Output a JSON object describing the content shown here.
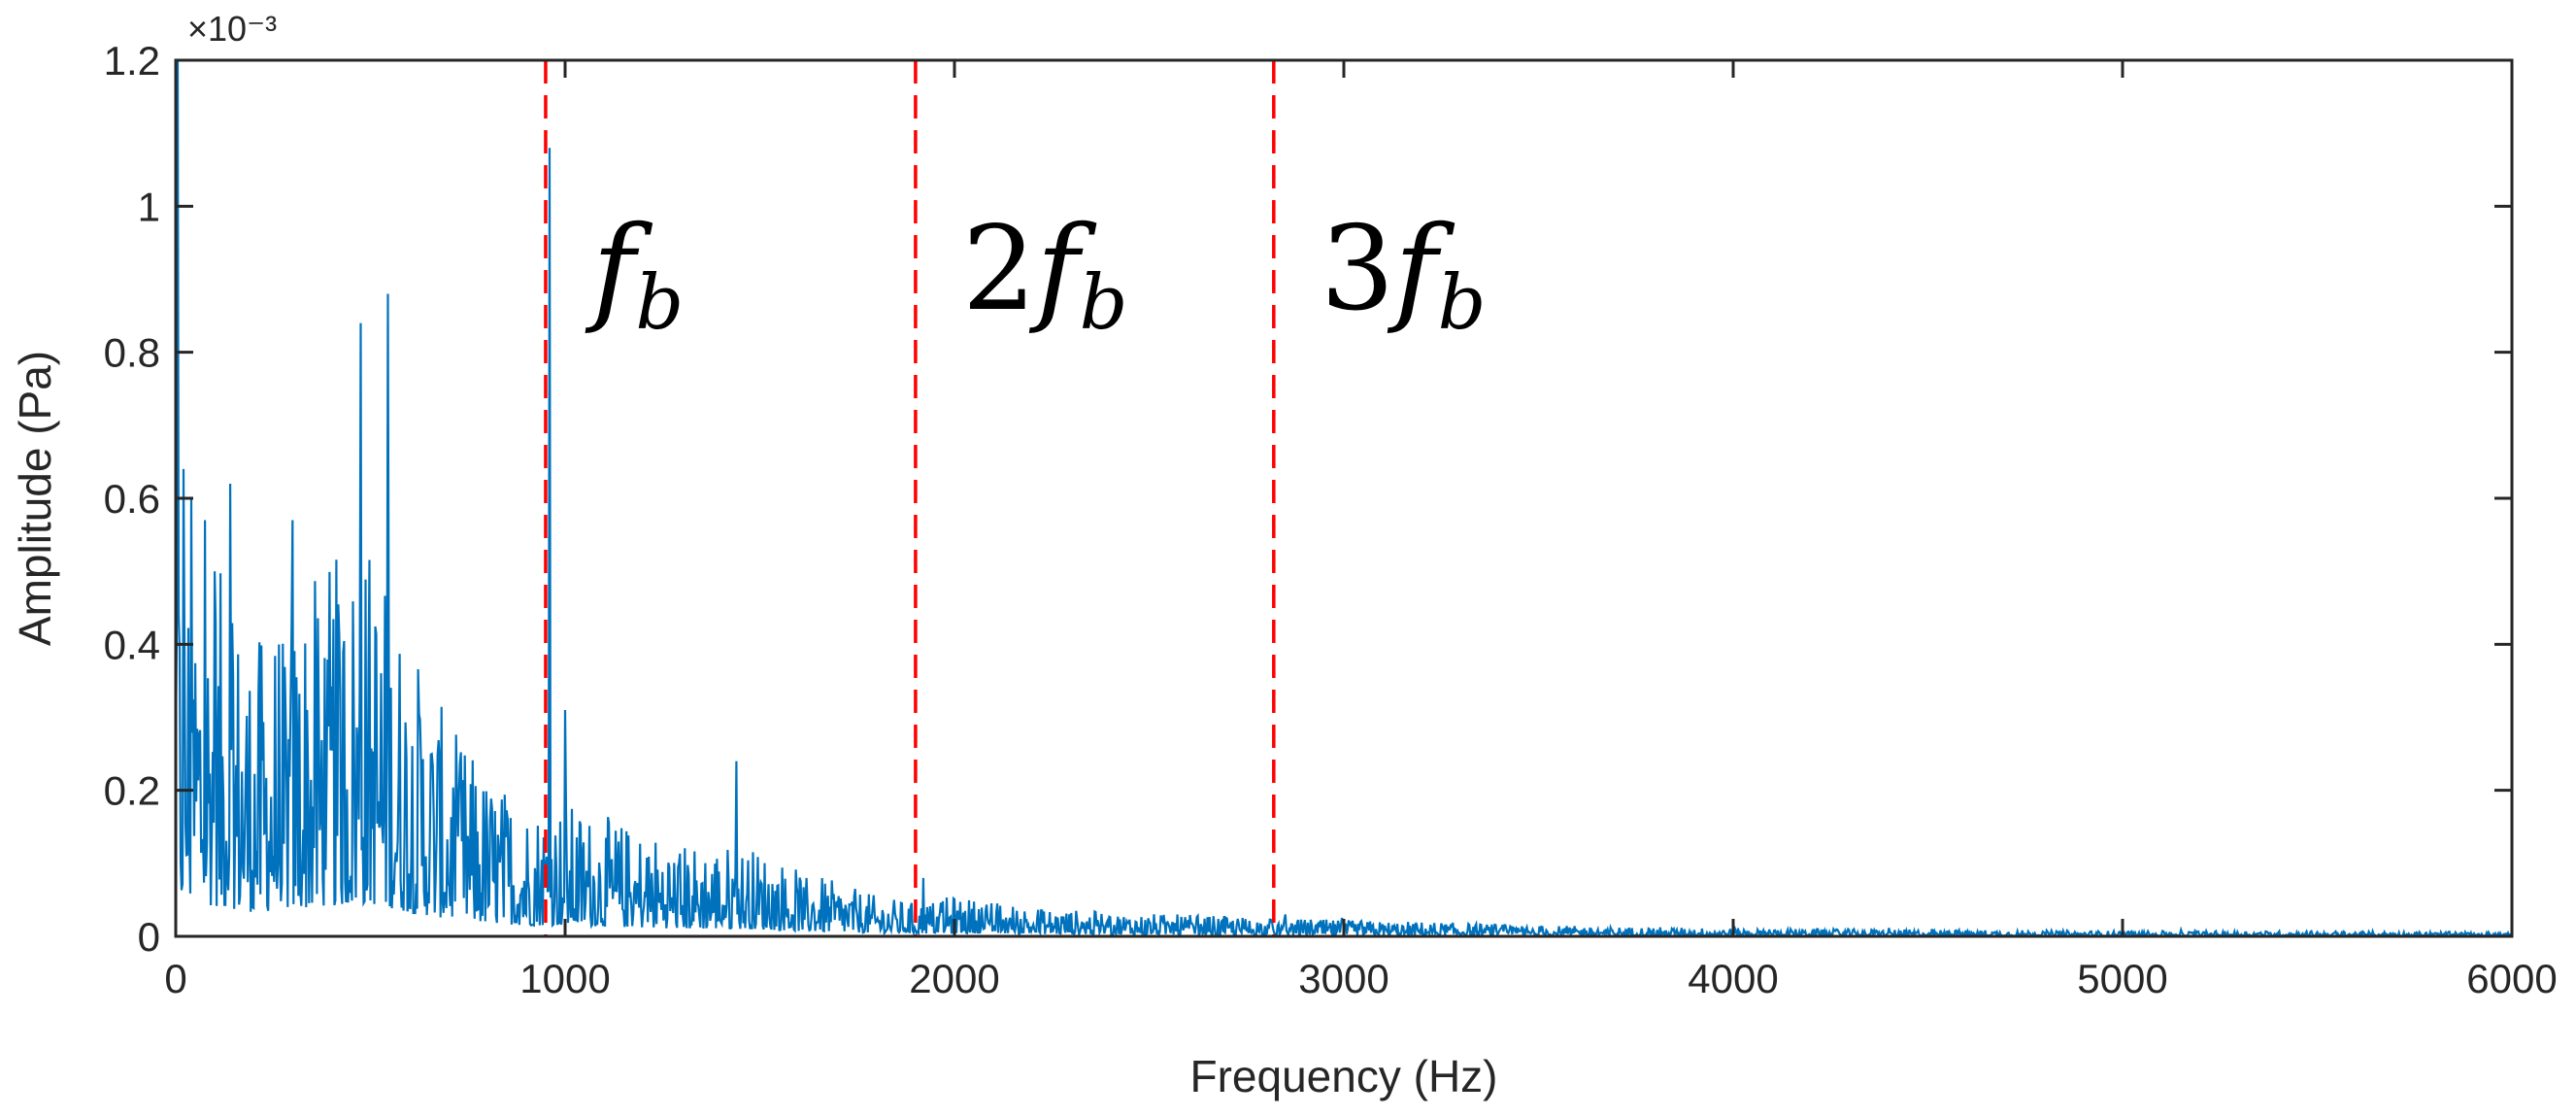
{
  "chart_data": {
    "type": "line",
    "title": "",
    "xlabel": "Frequency (Hz)",
    "ylabel": "Amplitude (Pa)",
    "y_exponent_label": "×10⁻³",
    "y_scale_exponent": -3,
    "xlim": [
      0,
      6000
    ],
    "ylim": [
      0,
      1.2
    ],
    "x_ticks": [
      0,
      1000,
      2000,
      3000,
      4000,
      5000,
      6000
    ],
    "x_tick_labels": [
      "0",
      "1000",
      "2000",
      "3000",
      "4000",
      "5000",
      "6000"
    ],
    "y_ticks": [
      0,
      0.2,
      0.4,
      0.6,
      0.8,
      1.0,
      1.2
    ],
    "y_tick_labels": [
      "0",
      "0.2",
      "0.4",
      "0.6",
      "0.8",
      "1",
      "1.2"
    ],
    "grid": false,
    "series_color": "#0072BD",
    "marker_color": "#FF0000",
    "series": [
      {
        "name": "",
        "envelope": {
          "x": [
            0,
            100,
            200,
            300,
            400,
            500,
            600,
            700,
            800,
            900,
            1000,
            1100,
            1200,
            1300,
            1400,
            1500,
            1600,
            1700,
            1800,
            1900,
            2000,
            2200,
            2400,
            2600,
            2800,
            3000,
            3200,
            3500,
            4000,
            4500,
            5000,
            5500,
            6000
          ],
          "y": [
            0.3,
            0.28,
            0.22,
            0.25,
            0.28,
            0.3,
            0.22,
            0.16,
            0.12,
            0.1,
            0.1,
            0.09,
            0.08,
            0.07,
            0.07,
            0.065,
            0.05,
            0.04,
            0.03,
            0.025,
            0.03,
            0.022,
            0.018,
            0.016,
            0.014,
            0.012,
            0.011,
            0.008,
            0.006,
            0.005,
            0.004,
            0.004,
            0.003
          ]
        },
        "peaks": {
          "x": [
            5,
            20,
            40,
            75,
            100,
            140,
            300,
            475,
            545,
            960,
            1000,
            1440,
            1920,
            2850
          ],
          "y": [
            1.2,
            0.64,
            0.6,
            0.57,
            0.5,
            0.62,
            0.57,
            0.84,
            0.88,
            1.08,
            0.31,
            0.24,
            0.08,
            0.03
          ]
        }
      }
    ],
    "vlines": [
      {
        "x": 950,
        "label_main": "f",
        "label_sub": "b",
        "label_prefix": ""
      },
      {
        "x": 1900,
        "label_main": "f",
        "label_sub": "b",
        "label_prefix": "2"
      },
      {
        "x": 2820,
        "label_main": "f",
        "label_sub": "b",
        "label_prefix": "3"
      }
    ]
  }
}
